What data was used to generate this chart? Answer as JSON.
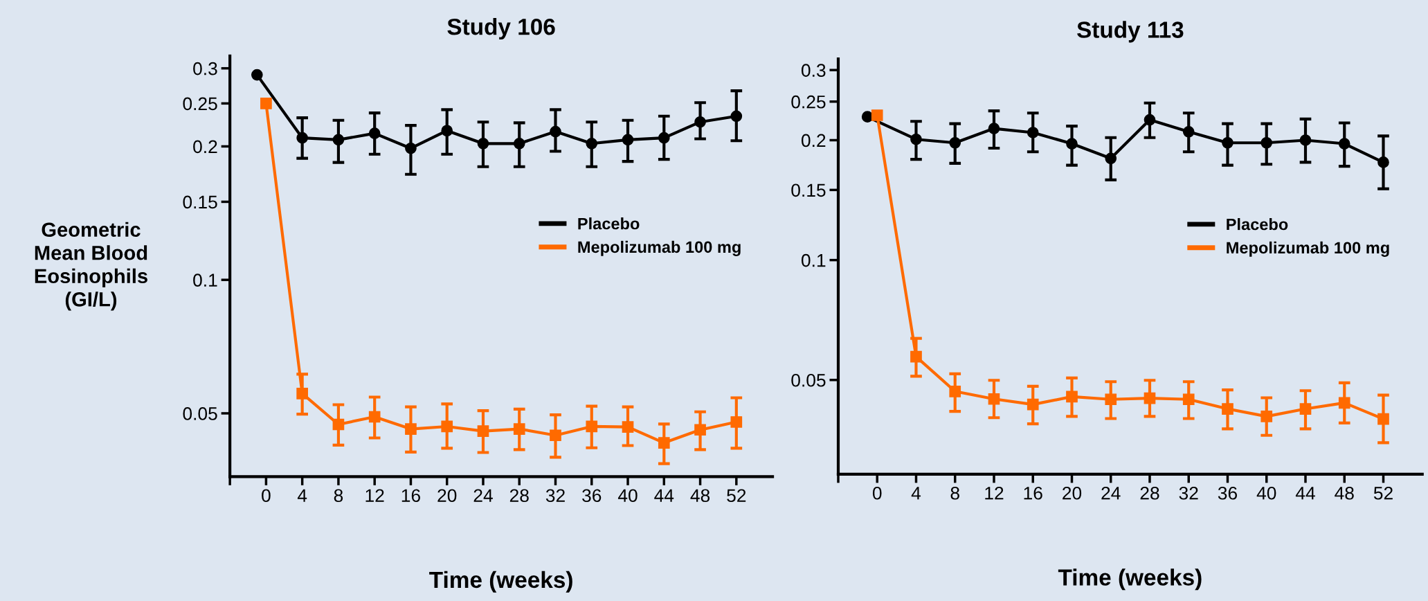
{
  "chart_data": [
    {
      "type": "line",
      "title": "Study 106",
      "xlabel": "Time (weeks)",
      "ylabel": "Geometric\nMean Blood\nEosinophils\n(GI/L)",
      "log": "y",
      "grid": false,
      "legend": "right",
      "xlim": [
        -4,
        56
      ],
      "xticks": [
        {
          "value": -4,
          "label": null
        },
        0,
        4,
        8,
        12,
        16,
        20,
        24,
        28,
        32,
        36,
        40,
        44,
        48,
        52
      ],
      "ylim": [
        0.036,
        0.32
      ],
      "yticks": [
        0.05,
        0.1,
        0.15,
        0.2,
        0.25,
        0.3
      ],
      "series": [
        {
          "name": "Placebo",
          "color": "#000000",
          "marker": "circle",
          "x": [
            -1,
            4,
            8,
            12,
            16,
            20,
            24,
            28,
            32,
            36,
            40,
            44,
            48,
            52
          ],
          "values": [
            0.29,
            0.209,
            0.207,
            0.214,
            0.198,
            0.217,
            0.203,
            0.203,
            0.216,
            0.203,
            0.207,
            0.209,
            0.227,
            0.234
          ],
          "errors": [
            null,
            [
              0.188,
              0.232
            ],
            [
              0.184,
              0.229
            ],
            [
              0.192,
              0.238
            ],
            [
              0.173,
              0.223
            ],
            [
              0.192,
              0.242
            ],
            [
              0.18,
              0.227
            ],
            [
              0.18,
              0.226
            ],
            [
              0.195,
              0.242
            ],
            [
              0.18,
              0.227
            ],
            [
              0.185,
              0.229
            ],
            [
              0.187,
              0.234
            ],
            [
              0.208,
              0.251
            ],
            [
              0.206,
              0.267
            ]
          ]
        },
        {
          "name": "Mepolizumab 100 mg",
          "color": "#ff6a00",
          "marker": "square",
          "x": [
            0,
            4,
            8,
            12,
            16,
            20,
            24,
            28,
            32,
            36,
            40,
            44,
            48,
            52
          ],
          "values": [
            0.25,
            0.0554,
            0.0472,
            0.0491,
            0.0461,
            0.0467,
            0.0456,
            0.0461,
            0.0446,
            0.0467,
            0.0466,
            0.0429,
            0.0459,
            0.0478
          ],
          "errors": [
            null,
            [
              0.0498,
              0.0613
            ],
            [
              0.0424,
              0.0523
            ],
            [
              0.044,
              0.0544
            ],
            [
              0.0409,
              0.0517
            ],
            [
              0.0417,
              0.0525
            ],
            [
              0.0408,
              0.0507
            ],
            [
              0.0414,
              0.0511
            ],
            [
              0.0398,
              0.0496
            ],
            [
              0.0418,
              0.0519
            ],
            [
              0.0423,
              0.0517
            ],
            [
              0.0385,
              0.0473
            ],
            [
              0.0414,
              0.0504
            ],
            [
              0.0417,
              0.0542
            ]
          ]
        }
      ]
    },
    {
      "type": "line",
      "title": "Study 113",
      "xlabel": "Time (weeks)",
      "log": "y",
      "grid": false,
      "legend": "right",
      "xlim": [
        -4,
        56
      ],
      "xticks": [
        {
          "value": -4,
          "label": null
        },
        0,
        4,
        8,
        12,
        16,
        20,
        24,
        28,
        32,
        36,
        40,
        44,
        48,
        52
      ],
      "ylim": [
        0.029,
        0.32
      ],
      "yticks": [
        0.05,
        0.1,
        0.15,
        0.2,
        0.25,
        0.3
      ],
      "series": [
        {
          "name": "Placebo",
          "color": "#000000",
          "marker": "circle",
          "x": [
            -1,
            4,
            8,
            12,
            16,
            20,
            24,
            28,
            32,
            36,
            40,
            44,
            48,
            52
          ],
          "values": [
            0.229,
            0.201,
            0.197,
            0.214,
            0.209,
            0.196,
            0.18,
            0.225,
            0.21,
            0.197,
            0.197,
            0.2,
            0.196,
            0.176
          ],
          "errors": [
            null,
            [
              0.179,
              0.223
            ],
            [
              0.175,
              0.22
            ],
            [
              0.191,
              0.237
            ],
            [
              0.187,
              0.234
            ],
            [
              0.173,
              0.217
            ],
            [
              0.159,
              0.203
            ],
            [
              0.203,
              0.248
            ],
            [
              0.187,
              0.234
            ],
            [
              0.173,
              0.22
            ],
            [
              0.174,
              0.22
            ],
            [
              0.176,
              0.226
            ],
            [
              0.172,
              0.221
            ],
            [
              0.151,
              0.205
            ]
          ]
        },
        {
          "name": "Mepolizumab 100 mg",
          "color": "#ff6a00",
          "marker": "square",
          "x": [
            0,
            4,
            8,
            12,
            16,
            20,
            24,
            28,
            32,
            36,
            40,
            44,
            48,
            52
          ],
          "values": [
            0.231,
            0.0572,
            0.0468,
            0.0448,
            0.0434,
            0.0454,
            0.0447,
            0.045,
            0.0447,
            0.0423,
            0.0405,
            0.0423,
            0.0438,
            0.0399
          ],
          "errors": [
            null,
            [
              0.0511,
              0.0636
            ],
            [
              0.0417,
              0.0518
            ],
            [
              0.0402,
              0.0499
            ],
            [
              0.0388,
              0.0482
            ],
            [
              0.0405,
              0.0506
            ],
            [
              0.04,
              0.0495
            ],
            [
              0.0405,
              0.0499
            ],
            [
              0.04,
              0.0495
            ],
            [
              0.0377,
              0.0472
            ],
            [
              0.0363,
              0.0451
            ],
            [
              0.0377,
              0.047
            ],
            [
              0.039,
              0.0492
            ],
            [
              0.0348,
              0.0458
            ]
          ]
        }
      ]
    }
  ]
}
